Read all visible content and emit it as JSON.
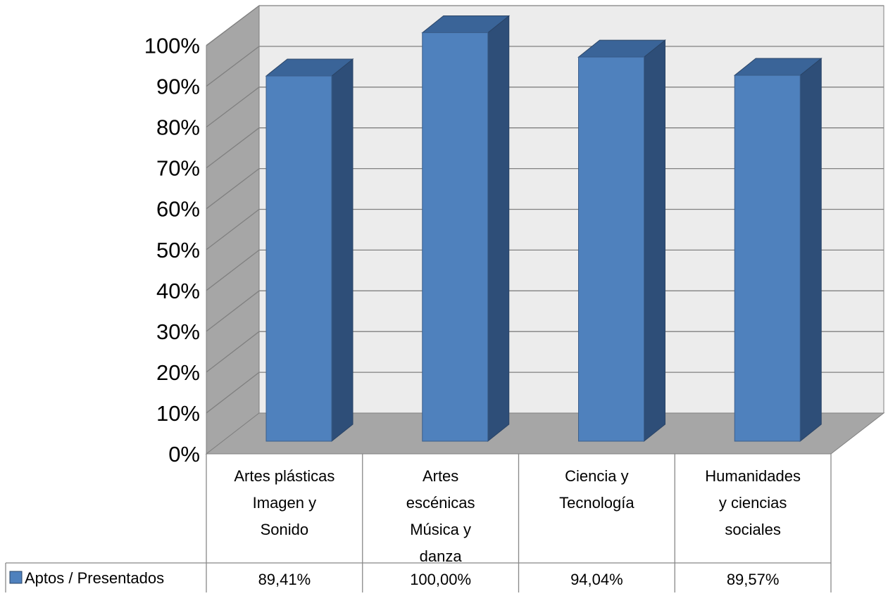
{
  "chart_data": {
    "type": "bar",
    "style": "3d-column-with-data-table",
    "categories": [
      [
        "Artes plásticas",
        "Imagen y",
        "Sonido"
      ],
      [
        "Artes",
        "escénicas",
        "Música y",
        "danza"
      ],
      [
        "Ciencia y",
        "Tecnología"
      ],
      [
        "Humanidades",
        "y ciencias",
        "sociales"
      ]
    ],
    "series": [
      {
        "name": "Aptos / Presentados",
        "values": [
          89.41,
          100.0,
          94.04,
          89.57
        ],
        "value_labels": [
          "89,41%",
          "100,00%",
          "94,04%",
          "89,57%"
        ],
        "color": "#4f81bd",
        "side_color": "#2e4e78",
        "top_color": "#3a6498"
      }
    ],
    "ylim": [
      0,
      100
    ],
    "yticks": [
      "0%",
      "10%",
      "20%",
      "30%",
      "40%",
      "50%",
      "60%",
      "70%",
      "80%",
      "90%",
      "100%"
    ],
    "grid": true,
    "legend": "in-data-table",
    "colors": {
      "back_wall": "#ececec",
      "side_wall": "#a6a6a6",
      "floor": "#a6a6a6",
      "grid_line": "#808080"
    }
  }
}
